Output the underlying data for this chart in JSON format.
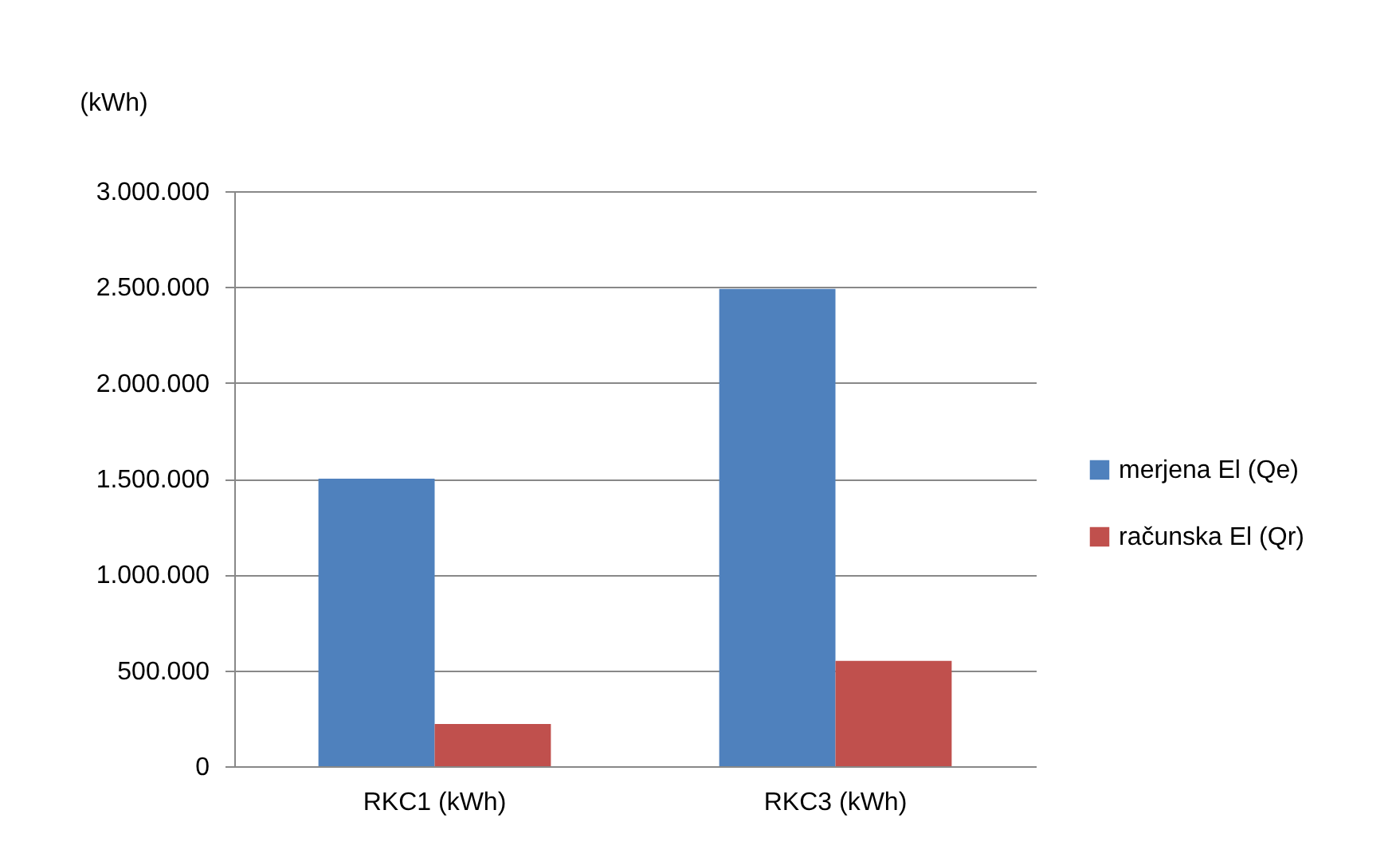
{
  "chart_data": {
    "type": "bar",
    "ylabel": "(kWh)",
    "categories": [
      "RKC1 (kWh)",
      "RKC3 (kWh)"
    ],
    "series": [
      {
        "name": "merjena El (Qe)",
        "color": "#4f81bd",
        "values": [
          1500000,
          2490000
        ]
      },
      {
        "name": "računska El (Qr)",
        "color": "#c0504d",
        "values": [
          220000,
          550000
        ]
      }
    ],
    "ylim": [
      0,
      3000000
    ],
    "yticks": [
      {
        "value": 0,
        "label": "0"
      },
      {
        "value": 500000,
        "label": "500.000"
      },
      {
        "value": 1000000,
        "label": "1.000.000"
      },
      {
        "value": 1500000,
        "label": "1.500.000"
      },
      {
        "value": 2000000,
        "label": "2.000.000"
      },
      {
        "value": 2500000,
        "label": "2.500.000"
      },
      {
        "value": 3000000,
        "label": "3.000.000"
      }
    ],
    "grid": "y",
    "legend": "right"
  }
}
